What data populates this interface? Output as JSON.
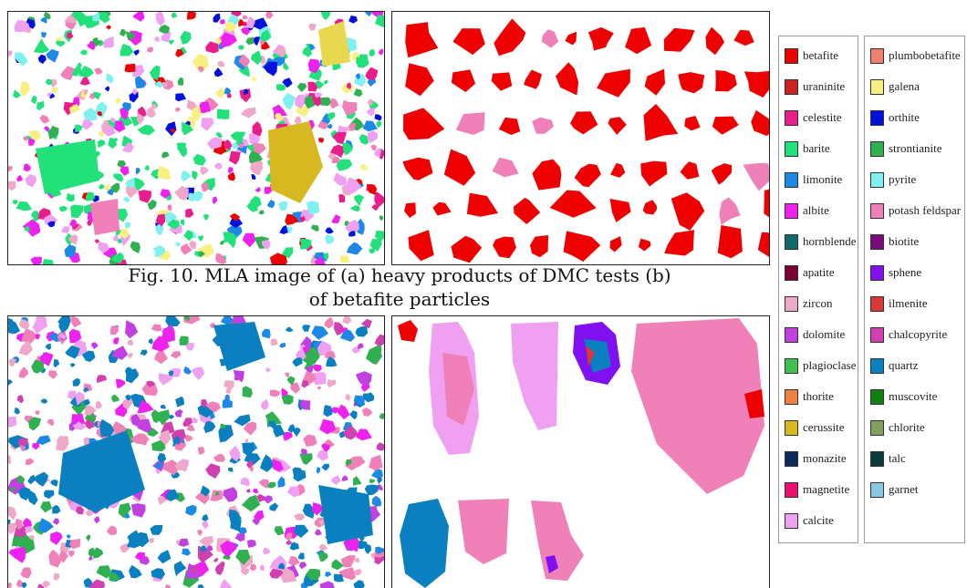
{
  "caption": {
    "line1": "Fig. 10. MLA image of (a) heavy products of DMC tests (b)",
    "line2": "of betafite particles"
  },
  "legend": {
    "column1": [
      {
        "label": "betafite",
        "color": "#ee0000"
      },
      {
        "label": "uraninite",
        "color": "#cc2222"
      },
      {
        "label": "celestite",
        "color": "#e91e8c"
      },
      {
        "label": "barite",
        "color": "#22e07a"
      },
      {
        "label": "limonite",
        "color": "#1e88e5"
      },
      {
        "label": "albite",
        "color": "#ee22ee"
      },
      {
        "label": "hornblende",
        "color": "#0f6b6b"
      },
      {
        "label": "apatite",
        "color": "#7a0033"
      },
      {
        "label": "zircon",
        "color": "#f0a8c8"
      },
      {
        "label": "dolomite",
        "color": "#c040e0"
      },
      {
        "label": "plagioclase",
        "color": "#40c050"
      },
      {
        "label": "thorite",
        "color": "#f08040"
      },
      {
        "label": "cerussite",
        "color": "#d8b820"
      },
      {
        "label": "monazite",
        "color": "#0a2a5a"
      },
      {
        "label": "magnetite",
        "color": "#ee1070"
      },
      {
        "label": "calcite",
        "color": "#f0a0f0"
      }
    ],
    "column2": [
      {
        "label": "plumbobetafite",
        "color": "#f08070"
      },
      {
        "label": "galena",
        "color": "#f8f080"
      },
      {
        "label": "orthite",
        "color": "#0010dd"
      },
      {
        "label": "strontianite",
        "color": "#30b050"
      },
      {
        "label": "pyrite",
        "color": "#80f0f0"
      },
      {
        "label": "potash feldspar",
        "color": "#f080b8"
      },
      {
        "label": "biotite",
        "color": "#7a0a7a"
      },
      {
        "label": "sphene",
        "color": "#8010f0"
      },
      {
        "label": "ilmenite",
        "color": "#d83838"
      },
      {
        "label": "chalcopyrite",
        "color": "#d040b0"
      },
      {
        "label": "quartz",
        "color": "#0a80c0"
      },
      {
        "label": "muscovite",
        "color": "#108010"
      },
      {
        "label": "chlorite",
        "color": "#80a060"
      },
      {
        "label": "talc",
        "color": "#0a3a3a"
      },
      {
        "label": "garnet",
        "color": "#88c8e0"
      }
    ]
  }
}
